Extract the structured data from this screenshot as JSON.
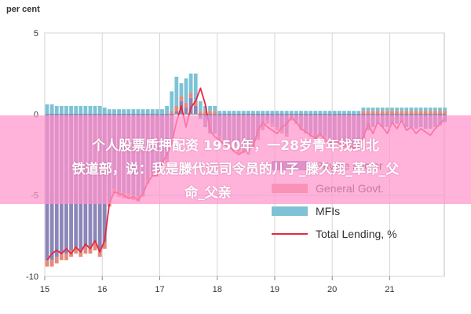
{
  "chart_data": {
    "type": "bar",
    "unit_label": "per cent",
    "ylim": [
      -10,
      5
    ],
    "y_ticks": [
      "5",
      "0",
      "-5",
      "-10"
    ],
    "y_tick_values": [
      5,
      0,
      -5,
      -10
    ],
    "x_ticks": [
      "15",
      "16",
      "17",
      "18",
      "19",
      "20",
      "21"
    ],
    "x_tick_values": [
      2015,
      2016,
      2017,
      2018,
      2019,
      2020,
      2021
    ],
    "xlim": [
      2015,
      2021.95
    ],
    "grid": true,
    "legend_position": "right",
    "colors": {
      "private": "#8b86b9",
      "government": "#e58a7d",
      "mfis": "#7ec2d6",
      "total": "#e8283e"
    },
    "series": [
      {
        "name": "Private sector",
        "kind": "bar",
        "values": [
          -9.0,
          -9.0,
          -8.8,
          -8.6,
          -8.6,
          -8.4,
          -8.2,
          -8.4,
          -8.2,
          -8.2,
          -8.0,
          -8.4,
          -7.9,
          -5.4,
          -4.6,
          -4.8,
          -4.9,
          -4.9,
          -5.0,
          -5.1,
          -4.8,
          -4.0,
          -3.6,
          -3.5,
          -3.0,
          -2.8,
          -1.6,
          0.2,
          0.8,
          0.4,
          1.0,
          0.5,
          -0.3,
          -0.8,
          -1.2,
          -1.2,
          -1.4,
          -1.6,
          -1.8,
          -2.0,
          -2.2,
          -2.2,
          -2.3,
          -1.8,
          -1.4,
          -0.8,
          -0.4,
          -0.6,
          -0.8,
          -1.0,
          -1.2,
          -0.2,
          -0.4,
          -0.8,
          -1.0,
          -1.2,
          -1.4,
          -1.2,
          -1.4,
          -1.6,
          -1.6,
          -1.6,
          -1.8,
          -1.8,
          -1.9,
          -2.0,
          -1.6,
          -1.0,
          -0.8,
          -0.6,
          -0.8,
          -0.8,
          -0.6,
          -0.6,
          -0.5,
          -0.8,
          -0.8,
          -0.9,
          -0.8,
          -0.9,
          -0.9,
          -0.8,
          -0.7,
          -0.5
        ]
      },
      {
        "name": "General Govt.",
        "kind": "bar",
        "values": [
          -0.4,
          -0.4,
          -0.4,
          -0.4,
          -0.4,
          -0.4,
          -0.4,
          -0.4,
          -0.4,
          -0.4,
          -0.4,
          -0.4,
          -0.4,
          -0.3,
          -0.3,
          -0.3,
          -0.3,
          -0.3,
          -0.3,
          -0.3,
          -0.3,
          -0.3,
          -0.2,
          -0.2,
          -0.2,
          -0.2,
          0.2,
          0.3,
          0.3,
          0.3,
          0.3,
          0.3,
          0.2,
          0.2,
          0.2,
          0.2,
          -0.2,
          -0.2,
          -0.2,
          -0.2,
          -0.2,
          -0.2,
          -0.2,
          -0.2,
          -0.2,
          -0.2,
          -0.2,
          -0.2,
          -0.2,
          -0.2,
          -0.2,
          -0.2,
          -0.2,
          -0.2,
          -0.2,
          -0.2,
          -0.2,
          -0.2,
          -0.2,
          -0.2,
          -0.2,
          -0.2,
          -0.2,
          -0.2,
          -0.2,
          -0.2,
          0.2,
          0.2,
          0.2,
          0.2,
          0.2,
          0.2,
          0.2,
          0.2,
          0.2,
          0.2,
          0.2,
          0.2,
          0.2,
          0.2,
          0.2,
          0.2,
          0.2,
          0.2
        ]
      },
      {
        "name": "MFIs",
        "kind": "bar",
        "values": [
          0.6,
          0.6,
          0.5,
          0.5,
          0.5,
          0.5,
          0.5,
          0.5,
          0.5,
          0.5,
          0.5,
          0.5,
          0.4,
          0.3,
          0.3,
          0.3,
          0.3,
          0.3,
          0.3,
          0.3,
          0.3,
          0.3,
          0.3,
          0.3,
          0.3,
          0.5,
          1.2,
          1.8,
          0.8,
          1.5,
          1.2,
          1.7,
          0.6,
          0.3,
          0.3,
          0.3,
          0.2,
          0.2,
          0.2,
          0.2,
          0.2,
          0.2,
          0.2,
          0.2,
          0.2,
          0.2,
          0.2,
          0.2,
          0.2,
          0.2,
          0.2,
          0.2,
          0.2,
          0.2,
          0.2,
          0.2,
          0.2,
          0.2,
          0.2,
          0.2,
          0.2,
          0.2,
          0.2,
          0.2,
          0.2,
          0.2,
          0.2,
          0.2,
          0.2,
          0.2,
          0.2,
          0.2,
          0.2,
          0.2,
          0.2,
          0.2,
          0.2,
          0.2,
          0.2,
          0.2,
          0.2,
          0.2,
          0.2,
          0.2
        ]
      },
      {
        "name": "Total Lending, %",
        "kind": "line",
        "values": [
          -9.0,
          -8.6,
          -8.4,
          -8.6,
          -8.3,
          -8.6,
          -8.2,
          -8.5,
          -8.0,
          -8.3,
          -7.8,
          -8.5,
          -7.8,
          -5.5,
          -4.8,
          -4.9,
          -5.0,
          -5.2,
          -5.1,
          -5.3,
          -4.9,
          -4.2,
          -3.8,
          -3.8,
          -3.0,
          -2.5,
          -1.8,
          -0.5,
          0.5,
          -0.8,
          0.4,
          0.8,
          1.6,
          0.6,
          -1.0,
          -1.4,
          -1.6,
          -1.9,
          -2.0,
          -2.3,
          -2.5,
          -2.3,
          -2.2,
          -2.0,
          -1.0,
          -0.5,
          -0.8,
          -1.0,
          -1.2,
          -0.8,
          -0.6,
          -0.2,
          -0.5,
          -0.9,
          -1.1,
          -1.3,
          -1.5,
          -1.2,
          -1.6,
          -1.8,
          -1.6,
          -1.8,
          -2.0,
          -1.9,
          -2.1,
          -2.0,
          -1.4,
          -0.6,
          -1.2,
          -0.5,
          -0.8,
          -1.2,
          -0.5,
          -0.9,
          -0.4,
          -1.0,
          -0.8,
          -1.2,
          -0.9,
          -1.1,
          -1.3,
          -0.9,
          -0.6,
          -0.3
        ]
      }
    ]
  },
  "legend": {
    "items": [
      {
        "label": "Private sector",
        "swatch": "rect",
        "color": "#8b86b9"
      },
      {
        "label": "General Govt.",
        "swatch": "rect",
        "color": "#e58a7d"
      },
      {
        "label": "MFIs",
        "swatch": "rect",
        "color": "#7ec2d6"
      },
      {
        "label": "Total Lending, %",
        "swatch": "line",
        "color": "#e8283e"
      }
    ]
  },
  "overlay": {
    "line1": "个人股票质押配资 1950年，一28岁青年找到北",
    "line2": "铁道部，说：我是滕代远司令员的儿子_滕久翔_革命_父",
    "line3": "命_父亲"
  }
}
